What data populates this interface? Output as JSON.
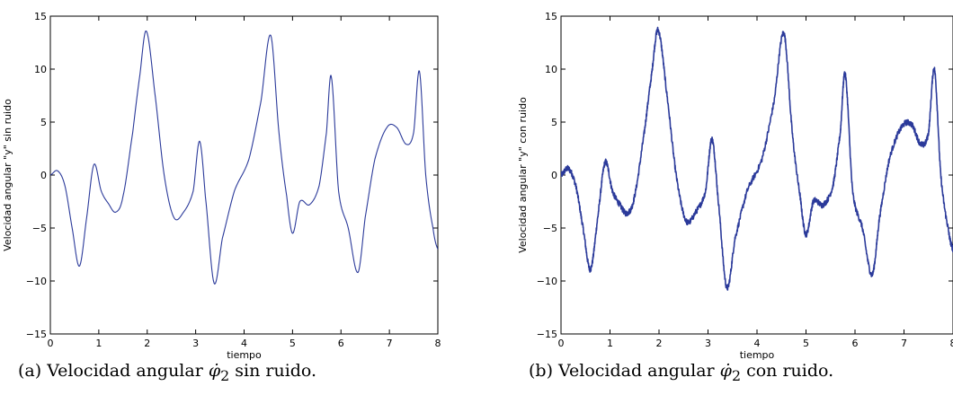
{
  "chart_data": [
    {
      "type": "line",
      "title": "",
      "xlabel": "tiempo",
      "ylabel": "Velocidad angular \"y\" sin ruido",
      "xlim": [
        0,
        8
      ],
      "ylim": [
        -15,
        15
      ],
      "xticks": [
        "0",
        "1",
        "2",
        "3",
        "4",
        "5",
        "6",
        "7",
        "8"
      ],
      "yticks": [
        "−15",
        "−10",
        "−5",
        "0",
        "5",
        "10",
        "15"
      ],
      "grid": false,
      "color": "#2b3a9a",
      "noise": false,
      "series": [
        {
          "x": [
            0,
            0.15,
            0.3,
            0.45,
            0.6,
            0.75,
            0.9,
            1.05,
            1.2,
            1.35,
            1.5,
            1.7,
            1.85,
            1.98,
            2.15,
            2.35,
            2.55,
            2.75,
            2.95,
            3.08,
            3.2,
            3.38,
            3.55,
            3.8,
            4.1,
            4.35,
            4.55,
            4.72,
            4.88,
            5.0,
            5.15,
            5.35,
            5.55,
            5.7,
            5.8,
            5.95,
            6.15,
            6.35,
            6.5,
            6.7,
            6.95,
            7.15,
            7.35,
            7.5,
            7.62,
            7.75,
            7.9,
            8.0
          ],
          "y": [
            0,
            0.4,
            -1.0,
            -5.0,
            -8.6,
            -4.0,
            1.0,
            -1.5,
            -2.7,
            -3.5,
            -2.0,
            4.0,
            9.5,
            13.6,
            8.0,
            0.0,
            -4.0,
            -3.5,
            -1.5,
            3.2,
            -2.0,
            -10.2,
            -6.0,
            -1.5,
            1.5,
            7.0,
            13.2,
            4.0,
            -2.0,
            -5.5,
            -2.5,
            -2.8,
            -1.0,
            4.0,
            9.3,
            -1.5,
            -5.0,
            -9.2,
            -4.0,
            1.5,
            4.5,
            4.5,
            2.9,
            4.0,
            9.8,
            0.0,
            -5.0,
            -7.0
          ]
        }
      ]
    },
    {
      "type": "line",
      "title": "",
      "xlabel": "tiempo",
      "ylabel": "Velocidad angular \"y\" con ruido",
      "xlim": [
        0,
        8
      ],
      "ylim": [
        -15,
        15
      ],
      "xticks": [
        "0",
        "1",
        "2",
        "3",
        "4",
        "5",
        "6",
        "7",
        "8"
      ],
      "yticks": [
        "−15",
        "−10",
        "−5",
        "0",
        "5",
        "10",
        "15"
      ],
      "grid": false,
      "color": "#2b3a9a",
      "noise": true,
      "series": [
        {
          "x": [
            0,
            0.15,
            0.3,
            0.45,
            0.6,
            0.75,
            0.9,
            1.05,
            1.2,
            1.35,
            1.5,
            1.7,
            1.85,
            1.98,
            2.15,
            2.35,
            2.55,
            2.75,
            2.95,
            3.08,
            3.2,
            3.38,
            3.55,
            3.8,
            4.1,
            4.35,
            4.55,
            4.72,
            4.88,
            5.0,
            5.15,
            5.35,
            5.55,
            5.7,
            5.8,
            5.95,
            6.15,
            6.35,
            6.5,
            6.7,
            6.95,
            7.15,
            7.35,
            7.5,
            7.62,
            7.75,
            7.9,
            8.0
          ],
          "y": [
            0,
            0.6,
            -1.0,
            -5.0,
            -8.9,
            -4.0,
            1.2,
            -1.5,
            -2.8,
            -3.6,
            -2.0,
            4.0,
            9.5,
            13.7,
            8.0,
            0.0,
            -4.3,
            -3.5,
            -1.5,
            3.4,
            -2.0,
            -10.6,
            -6.0,
            -1.5,
            1.5,
            7.0,
            13.4,
            4.0,
            -2.0,
            -5.6,
            -2.5,
            -2.8,
            -1.0,
            4.0,
            9.5,
            -1.5,
            -5.0,
            -9.4,
            -4.0,
            1.5,
            4.5,
            4.8,
            2.9,
            4.0,
            10.0,
            0.0,
            -5.0,
            -7.0
          ]
        }
      ]
    }
  ],
  "captions": {
    "a": {
      "prefix": "(a) Velocidad angular ",
      "symbol": "φ̇",
      "subscript": "2",
      "suffix": " sin ruido."
    },
    "b": {
      "prefix": "(b) Velocidad angular ",
      "symbol": "φ̇",
      "subscript": "2",
      "suffix": " con ruido."
    }
  }
}
